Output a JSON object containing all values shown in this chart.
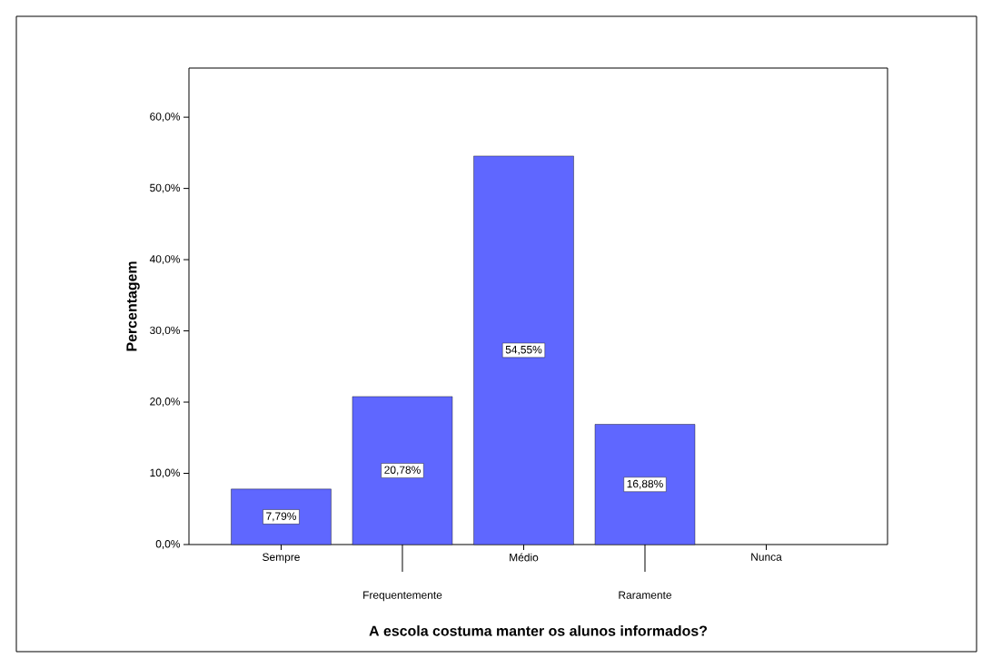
{
  "chart_data": {
    "type": "bar",
    "categories": [
      "Sempre",
      "Frequentemente",
      "Médio",
      "Raramente",
      "Nunca"
    ],
    "values": [
      7.79,
      20.78,
      54.55,
      16.88,
      0
    ],
    "value_labels": [
      "7,79%",
      "20,78%",
      "54,55%",
      "16,88%",
      null
    ],
    "color": "#5f67ff",
    "xlabel": "A escola costuma manter os alunos informados?",
    "ylabel": "Percentagem",
    "ylim": [
      0,
      66.9
    ],
    "yticks": [
      {
        "value": 0,
        "label": "0,0%"
      },
      {
        "value": 10,
        "label": "10,0%"
      },
      {
        "value": 20,
        "label": "20,0%"
      },
      {
        "value": 30,
        "label": "30,0%"
      },
      {
        "value": 40,
        "label": "40,0%"
      },
      {
        "value": 50,
        "label": "50,0%"
      },
      {
        "value": 60,
        "label": "60,0%"
      }
    ]
  }
}
